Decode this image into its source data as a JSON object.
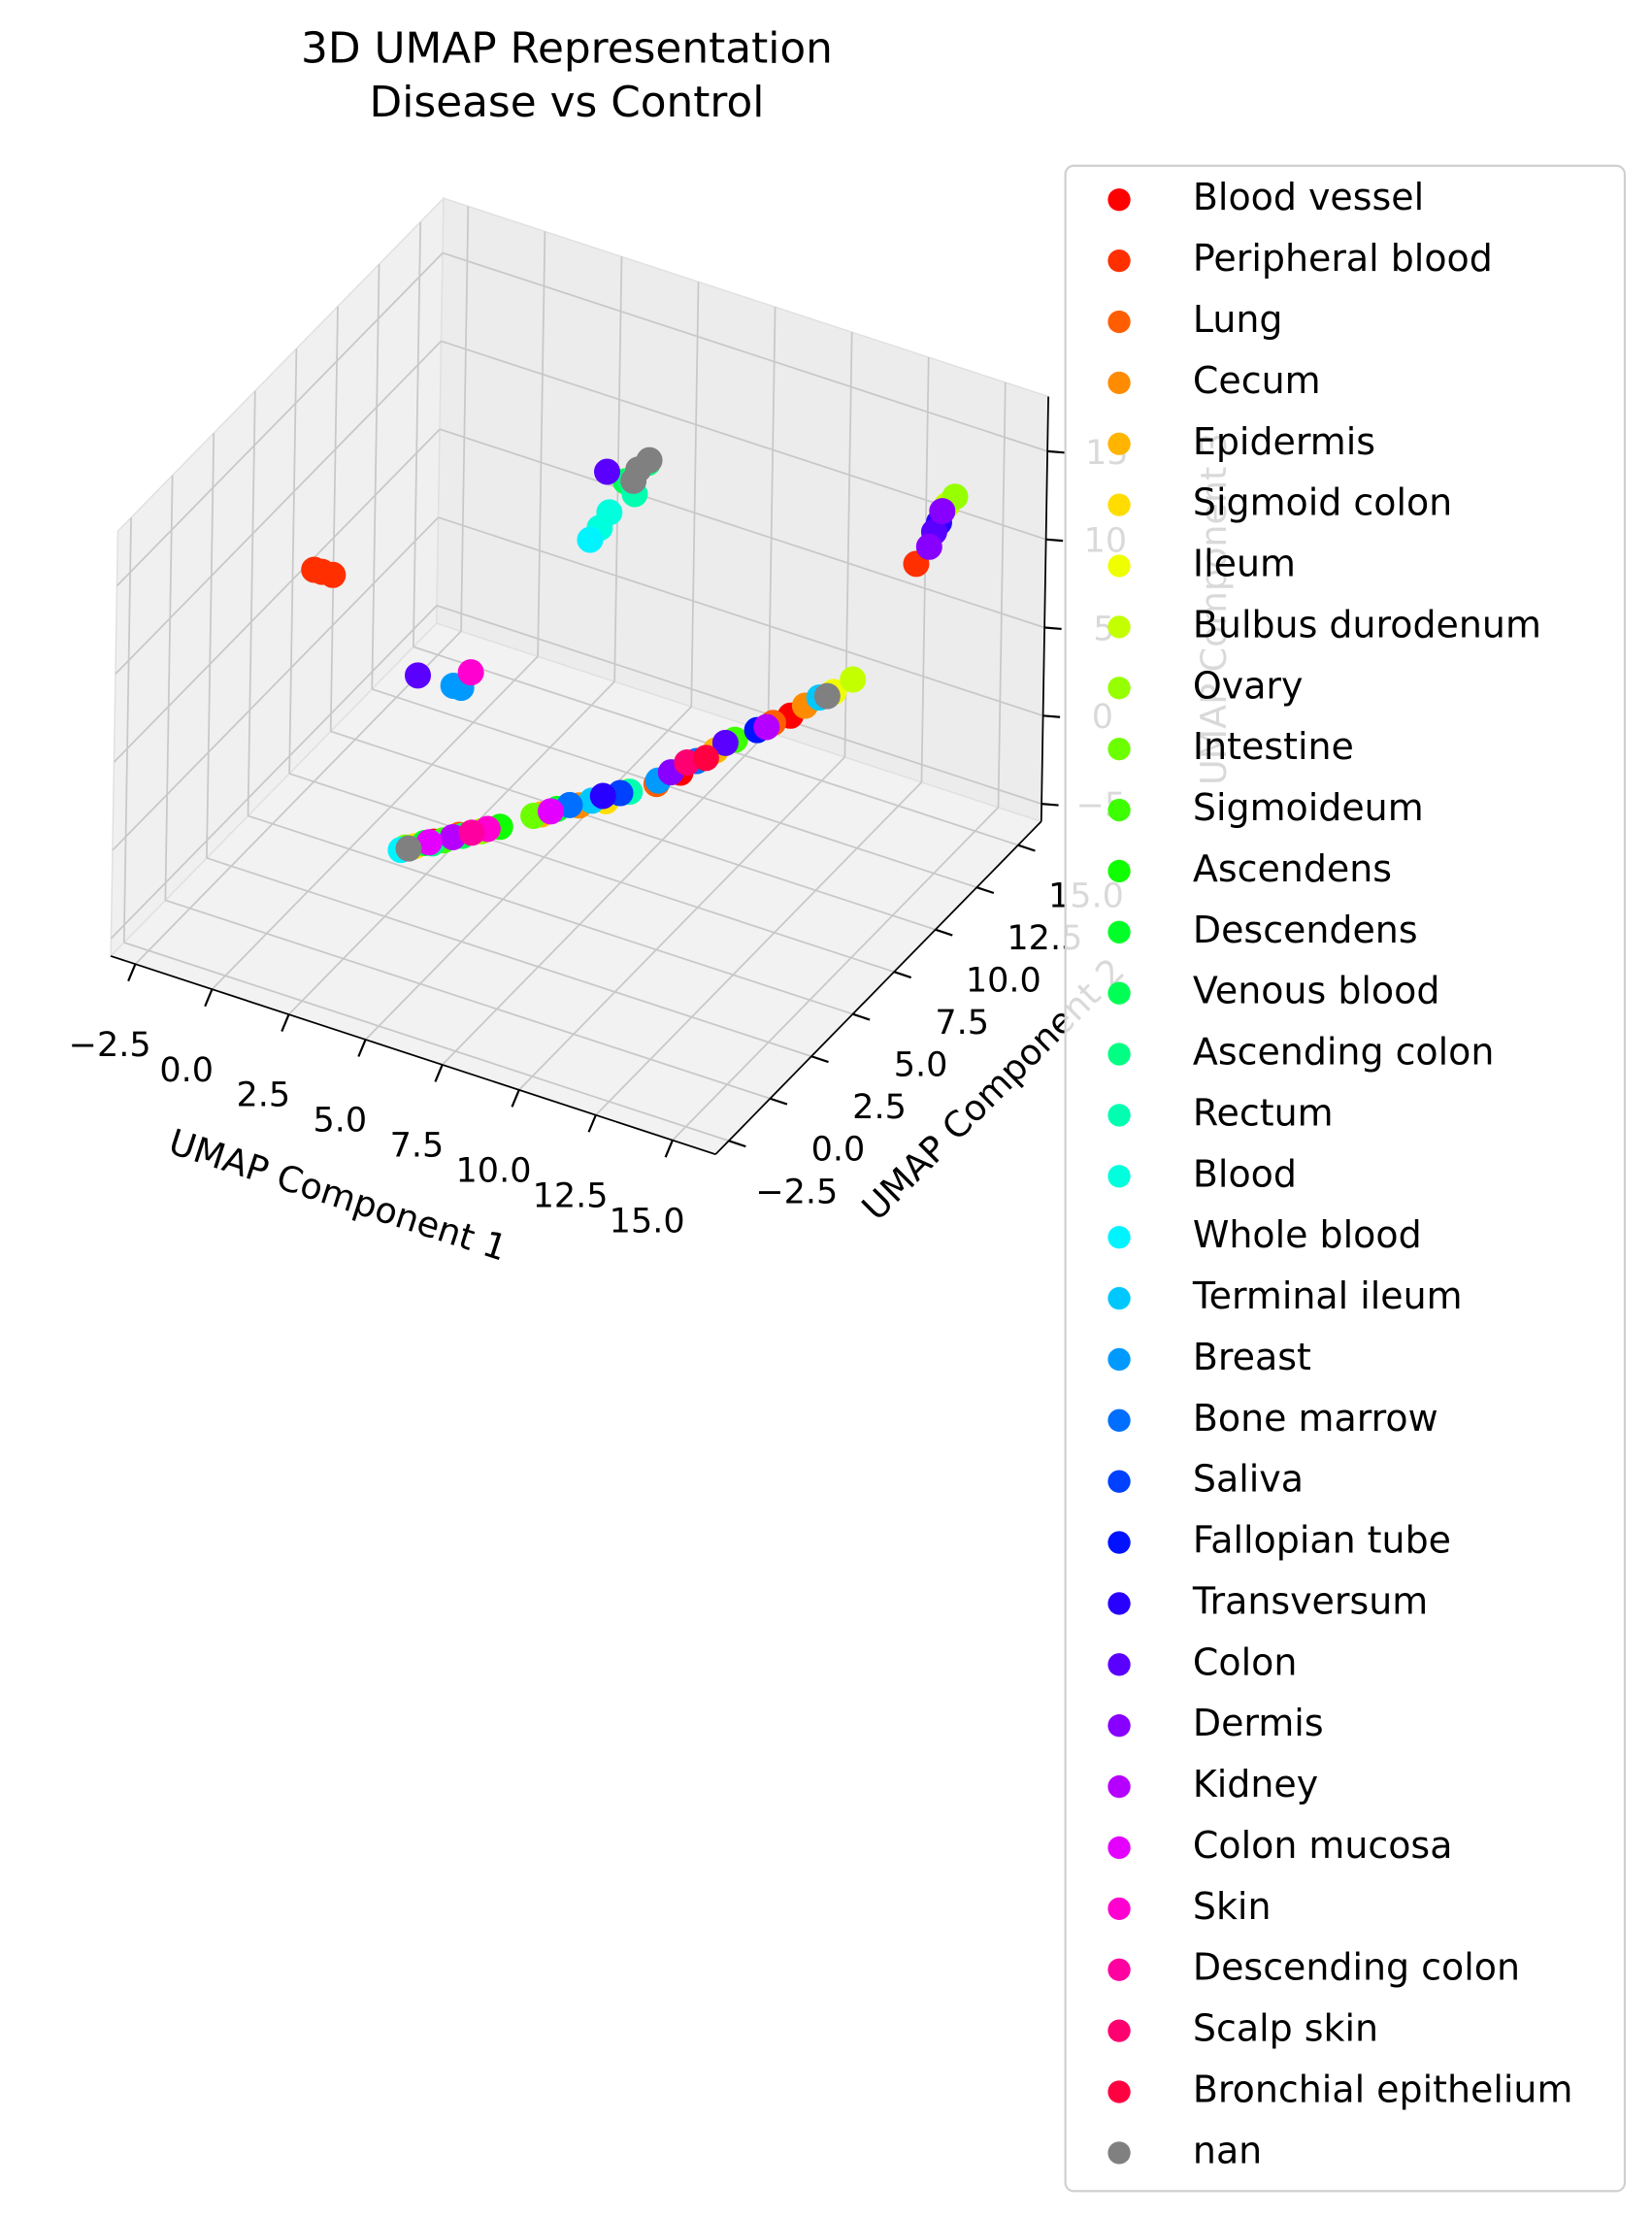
{
  "chart_data": {
    "type": "scatter3d",
    "title": "3D UMAP Representation",
    "subtitle": "Disease vs Control",
    "xlabel": "UMAP Component 1",
    "ylabel": "UMAP Component 2",
    "zlabel": "UMAP Component 3",
    "xlim": [
      -3.3,
      16.4
    ],
    "ylim": [
      -3.3,
      16.4
    ],
    "zlim": [
      -6,
      18.1
    ],
    "xticks": [
      {
        "value": -2.5,
        "label": "−2.5"
      },
      {
        "value": 0,
        "label": "0.0"
      },
      2.5,
      {
        "value": 5,
        "label": "5.0"
      },
      7.5,
      {
        "value": 10,
        "label": "10.0"
      },
      12.5,
      {
        "value": 15,
        "label": "15.0"
      }
    ],
    "yticks": [
      {
        "value": -2.5,
        "label": "−2.5"
      },
      {
        "value": 0,
        "label": "0.0"
      },
      2.5,
      {
        "value": 5,
        "label": "5.0"
      },
      7.5,
      {
        "value": 10,
        "label": "10.0"
      },
      12.5,
      {
        "value": 15,
        "label": "15.0"
      }
    ],
    "zticks": [
      {
        "value": -5,
        "label": "−5"
      },
      0,
      5,
      10,
      15
    ],
    "grid": true,
    "legend": "outside-right",
    "series": [
      {
        "name": "Blood vessel",
        "color": "#ff0000",
        "x": [
          4.0,
          9.0,
          10.8
        ],
        "y": [
          2.6,
          8.2,
          11.5
        ],
        "z": [
          -1.0,
          0.4,
          1.5
        ]
      },
      {
        "name": "Peripheral blood",
        "color": "#ff2f00",
        "x": [
          -1.3,
          -1.0,
          -1.5,
          14.0
        ],
        "y": [
          5.5,
          5.6,
          5.4,
          13.0
        ],
        "z": [
          8.5,
          8.4,
          8.6,
          10.5
        ]
      },
      {
        "name": "Lung",
        "color": "#ff5e00",
        "x": [
          8.6,
          10.5,
          4.5
        ],
        "y": [
          7.5,
          11.0,
          3.2
        ],
        "z": [
          0.2,
          1.4,
          -0.9
        ]
      },
      {
        "name": "Cecum",
        "color": "#ff8c00",
        "x": [
          7.0,
          11.0
        ],
        "y": [
          5.8,
          12.0
        ],
        "z": [
          -0.3,
          1.7
        ]
      },
      {
        "name": "Epidermis",
        "color": "#ffb400",
        "x": [
          6.2,
          9.5
        ],
        "y": [
          5.0,
          9.4
        ],
        "z": [
          -0.5,
          0.8
        ]
      },
      {
        "name": "Sigmoid colon",
        "color": "#ffdd00",
        "x": [
          7.6,
          3.6
        ],
        "y": [
          6.3,
          2.2
        ],
        "z": [
          -0.2,
          -1.1
        ]
      },
      {
        "name": "Ileum",
        "color": "#f0ff00",
        "x": [
          8.0,
          11.5
        ],
        "y": [
          6.9,
          12.8
        ],
        "z": [
          0,
          2.0
        ]
      },
      {
        "name": "Bulbus durodenum",
        "color": "#c4ff00",
        "x": [
          11.8,
          14.6
        ],
        "y": [
          13.4,
          13.7
        ],
        "z": [
          2.3,
          13.5
        ]
      },
      {
        "name": "Ovary",
        "color": "#96ff00",
        "x": [
          5.0,
          14.8
        ],
        "y": [
          3.6,
          13.8
        ],
        "z": [
          -0.8,
          14.0
        ]
      },
      {
        "name": "Intestine",
        "color": "#6cff00",
        "x": [
          3.4,
          6.0
        ],
        "y": [
          2.0,
          4.9
        ],
        "z": [
          -1.1,
          -0.6
        ]
      },
      {
        "name": "Sigmoideum",
        "color": "#3cff00",
        "x": [
          4.2,
          9.8
        ],
        "y": [
          2.8,
          10.0
        ],
        "z": [
          -1.0,
          1.0
        ]
      },
      {
        "name": "Ascendens",
        "color": "#10ff00",
        "x": [
          5.4
        ],
        "y": [
          4.0
        ],
        "z": [
          -0.7
        ]
      },
      {
        "name": "Descendens",
        "color": "#00ff28",
        "x": [
          3.8,
          6.5
        ],
        "y": [
          2.4,
          5.4
        ],
        "z": [
          -1.0,
          -0.4
        ]
      },
      {
        "name": "Venous blood",
        "color": "#00ff55",
        "x": [
          5.8,
          4.6
        ],
        "y": [
          10.6,
          3.2
        ],
        "z": [
          12.8,
          -0.9
        ]
      },
      {
        "name": "Ascending colon",
        "color": "#00ff82",
        "x": [
          6.2,
          5.8,
          4.0
        ],
        "y": [
          11.2,
          10.9,
          2.5
        ],
        "z": [
          13.5,
          12.5,
          -1.0
        ]
      },
      {
        "name": "Rectum",
        "color": "#00ffb0",
        "x": [
          6.0,
          8.0
        ],
        "y": [
          10.8,
          7.0
        ],
        "z": [
          12.0,
          -0.1
        ]
      },
      {
        "name": "Blood",
        "color": "#00ffdc",
        "x": [
          5.2,
          5.4
        ],
        "y": [
          10.2,
          10.4
        ],
        "z": [
          10.2,
          11.0
        ]
      },
      {
        "name": "Whole blood",
        "color": "#00f4ff",
        "x": [
          5.0,
          3.3
        ],
        "y": [
          10.0,
          1.9
        ],
        "z": [
          9.6,
          -1.2
        ]
      },
      {
        "name": "Terminal ileum",
        "color": "#00c8ff",
        "x": [
          7.2,
          11.2
        ],
        "y": [
          6.2,
          12.5
        ],
        "z": [
          -0.3,
          1.8
        ]
      },
      {
        "name": "Breast",
        "color": "#009aff",
        "x": [
          2.6,
          2.8,
          8.6
        ],
        "y": [
          6.3,
          6.4,
          7.6
        ],
        "z": [
          3.5,
          3.4,
          0.3
        ]
      },
      {
        "name": "Bone marrow",
        "color": "#006eff",
        "x": [
          6.8,
          9.2
        ],
        "y": [
          5.6,
          8.8
        ],
        "z": [
          -0.2,
          0.6
        ]
      },
      {
        "name": "Saliva",
        "color": "#0040ff",
        "x": [
          7.8
        ],
        "y": [
          6.8
        ],
        "z": [
          -0.1
        ]
      },
      {
        "name": "Fallopian tube",
        "color": "#0012ff",
        "x": [
          10.2
        ],
        "y": [
          10.6
        ],
        "z": [
          1.2
        ]
      },
      {
        "name": "Transversum",
        "color": "#2800ff",
        "x": [
          14.4,
          7.4
        ],
        "y": [
          13.6,
          6.5
        ],
        "z": [
          12.5,
          -0.2
        ]
      },
      {
        "name": "Colon",
        "color": "#5a00ff",
        "x": [
          1.6,
          5.2,
          14.3,
          9.6
        ],
        "y": [
          6.0,
          10.6,
          13.5,
          9.8
        ],
        "z": [
          3.8,
          13.0,
          12.0,
          0.9
        ]
      },
      {
        "name": "Dermis",
        "color": "#8800ff",
        "x": [
          14.5,
          14.2,
          8.8
        ],
        "y": [
          13.6,
          13.4,
          8.0
        ],
        "z": [
          13.2,
          11.2,
          0.5
        ]
      },
      {
        "name": "Kidney",
        "color": "#b600ff",
        "x": [
          4.4,
          10.4
        ],
        "y": [
          3.0,
          10.8
        ],
        "z": [
          -0.9,
          1.3
        ]
      },
      {
        "name": "Colon mucosa",
        "color": "#e400ff",
        "x": [
          3.9,
          6.4
        ],
        "y": [
          2.5,
          5.2
        ],
        "z": [
          -1.0,
          -0.4
        ]
      },
      {
        "name": "Skin",
        "color": "#ff00d0",
        "x": [
          3.0,
          5.1
        ],
        "y": [
          6.6,
          3.8
        ],
        "z": [
          4.2,
          -0.8
        ]
      },
      {
        "name": "Descending colon",
        "color": "#ff00a0",
        "x": [
          4.8
        ],
        "y": [
          3.4
        ],
        "z": [
          -0.8
        ]
      },
      {
        "name": "Scalp skin",
        "color": "#ff0070",
        "x": [
          9.0
        ],
        "y": [
          8.6
        ],
        "z": [
          0.6
        ]
      },
      {
        "name": "Bronchial epithelium",
        "color": "#ff0040",
        "x": [
          9.4
        ],
        "y": [
          9.0
        ],
        "z": [
          0.7
        ]
      },
      {
        "name": "nan",
        "color": "#808080",
        "x": [
          6.0,
          6.3,
          5.9,
          3.5,
          11.4
        ],
        "y": [
          11.0,
          11.1,
          10.9,
          2.0,
          12.6
        ],
        "z": [
          13.2,
          13.8,
          12.6,
          -1.1,
          1.9
        ]
      }
    ]
  }
}
